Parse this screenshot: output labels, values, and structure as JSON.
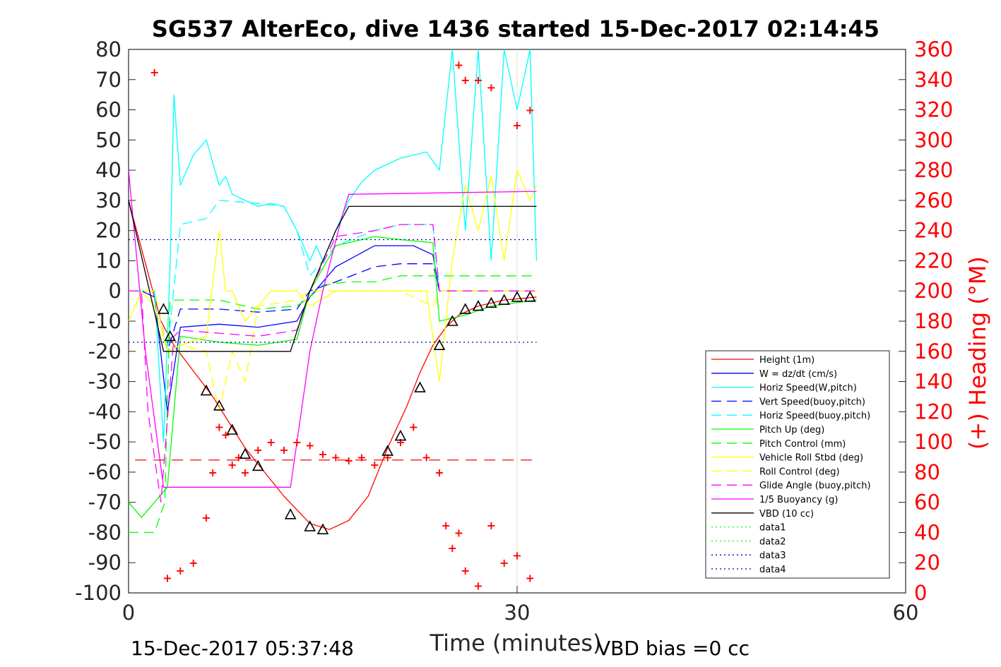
{
  "chart_data": {
    "type": "line",
    "title": "SG537 AlterEco, dive 1436 started 15-Dec-2017 02:14:45",
    "xlabel": "Time (minutes)",
    "ylabel_right": "(+) Heading (°M)",
    "xlim": [
      0,
      60
    ],
    "ylim": [
      -100,
      80
    ],
    "ylim_right": [
      0,
      360
    ],
    "xticks": [
      "0",
      "30",
      "60"
    ],
    "yticks": [
      "80",
      "70",
      "60",
      "50",
      "40",
      "30",
      "20",
      "10",
      "0",
      "-10",
      "-20",
      "-30",
      "-40",
      "-50",
      "-60",
      "-70",
      "-80",
      "-90",
      "-100"
    ],
    "yticks_right": [
      "360",
      "340",
      "320",
      "300",
      "280",
      "260",
      "240",
      "220",
      "200",
      "180",
      "160",
      "140",
      "120",
      "100",
      "80",
      "60",
      "40",
      "20",
      "0"
    ],
    "grid": "x",
    "legend_position": "right-inside",
    "footer_left": "15-Dec-2017 05:37:48",
    "footer_right": "VBD bias =0 cc",
    "colors": {
      "red": "#ff0000",
      "blue": "#0000ff",
      "cyan": "#00ffff",
      "green": "#00ff00",
      "yellow": "#ffff00",
      "magenta": "#ff00ff",
      "black": "#000000",
      "darkblue": "#0000aa"
    },
    "series": [
      {
        "name": "Height (1m)",
        "color": "#ff0000",
        "style": "solid",
        "x": [
          0,
          2.5,
          3.5,
          6.5,
          9,
          12,
          14,
          15.5,
          17,
          18.5,
          20,
          21.5,
          22.5,
          23.5,
          24.5,
          25.5,
          27,
          29,
          31.5
        ],
        "y": [
          30,
          -10,
          -18,
          -35,
          -52,
          -68,
          -77,
          -79,
          -76,
          -68,
          -52,
          -38,
          -27,
          -18,
          -12,
          -8,
          -5,
          -3,
          -2
        ]
      },
      {
        "name": "W = dz/dt (cm/s)",
        "color": "#0000ff",
        "style": "solid",
        "x": [
          0,
          1,
          2,
          3,
          4,
          7,
          10,
          13,
          14,
          16,
          19,
          22,
          23.5,
          24,
          26,
          28,
          31.5
        ],
        "y": [
          0,
          0,
          -2,
          -40,
          -12,
          -11,
          -12,
          -10,
          -2,
          8,
          15,
          15,
          12,
          0,
          0,
          0,
          0
        ]
      },
      {
        "name": "Horiz Speed(W,pitch)",
        "color": "#00ffff",
        "style": "solid",
        "x": [
          0,
          2,
          2.7,
          3.2,
          3.5,
          4,
          5,
          6,
          7,
          7.5,
          8,
          9,
          10,
          11,
          12,
          13,
          14,
          14.5,
          15,
          16,
          17,
          18,
          19,
          20,
          21,
          22,
          23,
          24,
          25,
          26,
          27,
          28,
          29,
          30,
          31,
          31.5
        ],
        "y": [
          0,
          0,
          -50,
          8,
          65,
          35,
          45,
          50,
          35,
          38,
          32,
          30,
          28,
          29,
          28,
          20,
          10,
          15,
          10,
          20,
          30,
          36,
          40,
          42,
          44,
          45,
          46,
          40,
          80,
          20,
          80,
          10,
          80,
          60,
          80,
          10
        ]
      },
      {
        "name": "Vert Speed(buoy,pitch)",
        "color": "#0000ff",
        "style": "dash",
        "x": [
          0,
          2,
          3,
          4,
          7,
          10,
          13,
          14,
          16,
          19,
          21,
          23.5,
          24,
          31.5
        ],
        "y": [
          0,
          0,
          -20,
          -6,
          -6,
          -7,
          -6,
          0,
          3,
          8,
          9,
          9,
          0,
          0
        ]
      },
      {
        "name": "Horiz Speed(buoy,pitch)",
        "color": "#00ffff",
        "style": "dash",
        "x": [
          0,
          2,
          3,
          4,
          6,
          7,
          10,
          12,
          13,
          14,
          16,
          19,
          21,
          23.5,
          24,
          31.5
        ],
        "y": [
          0,
          0,
          -20,
          22,
          24,
          30,
          29,
          28,
          20,
          5,
          15,
          20,
          22,
          22,
          0,
          0
        ]
      },
      {
        "name": "Pitch Up (deg)",
        "color": "#00ff00",
        "style": "solid",
        "x": [
          0,
          1,
          2,
          3,
          4,
          7,
          10,
          13,
          14,
          16,
          19,
          21,
          23.5,
          24,
          26,
          28,
          31.5
        ],
        "y": [
          -70,
          -75,
          -70,
          -65,
          -15,
          -17,
          -18,
          -16,
          0,
          15,
          18,
          17,
          16,
          -10,
          -8,
          -5,
          -3
        ]
      },
      {
        "name": "Pitch Control (mm)",
        "color": "#00ff00",
        "style": "dash",
        "x": [
          0,
          2,
          2.8,
          3.2,
          7,
          10,
          13,
          14,
          15,
          17,
          19,
          21,
          23.5,
          24,
          31.5
        ],
        "y": [
          -80,
          -80,
          -70,
          -3,
          -3,
          -6,
          -5,
          -2,
          2,
          3,
          3,
          5,
          5,
          5,
          5
        ]
      },
      {
        "name": "Vehicle Roll Stbd (deg)",
        "color": "#ffff00",
        "style": "solid",
        "x": [
          0,
          1,
          2,
          3,
          4,
          6,
          7,
          7.5,
          8,
          9,
          11,
          13,
          14,
          16,
          19,
          22,
          23,
          24,
          25,
          26,
          27,
          28,
          29,
          30,
          31,
          31.5
        ],
        "y": [
          -10,
          0,
          -5,
          -20,
          -18,
          -15,
          20,
          0,
          0,
          -10,
          0,
          0,
          -5,
          0,
          0,
          0,
          0,
          -30,
          10,
          35,
          20,
          38,
          10,
          40,
          30,
          35
        ]
      },
      {
        "name": "Roll Control (deg)",
        "color": "#ffff00",
        "style": "dash",
        "x": [
          0,
          2,
          3,
          4,
          6,
          7,
          8,
          9,
          10,
          13,
          14,
          17,
          21,
          23.5,
          24,
          31.5
        ],
        "y": [
          0,
          0,
          -20,
          -18,
          -20,
          -40,
          -20,
          -30,
          -5,
          -3,
          0,
          0,
          0,
          -5,
          0,
          0
        ]
      },
      {
        "name": "Glide Angle (buoy,pitch)",
        "color": "#ff00ff",
        "style": "dash",
        "x": [
          0,
          1,
          1.5,
          2.5,
          3.5,
          4,
          7,
          10,
          13,
          14,
          16,
          19,
          21,
          23.5,
          24,
          31.5
        ],
        "y": [
          0,
          0,
          -40,
          -70,
          -15,
          -13,
          -14,
          -15,
          -13,
          0,
          18,
          20,
          22,
          22,
          0,
          0
        ]
      },
      {
        "name": "1/5 Buoyancy (g)",
        "color": "#ff00ff",
        "style": "solid",
        "x": [
          0,
          1.3,
          2.7,
          3,
          10,
          12.5,
          14,
          15,
          16.5,
          17,
          31.5
        ],
        "y": [
          40,
          -20,
          -65,
          -65,
          -65,
          -65,
          -20,
          0,
          25,
          32,
          33
        ]
      },
      {
        "name": "VBD (10 cc)",
        "color": "#000000",
        "style": "solid",
        "x": [
          0,
          2.7,
          3,
          12.5,
          14,
          16,
          17,
          31.5
        ],
        "y": [
          30,
          -20,
          -20,
          -20,
          0,
          20,
          28,
          28
        ]
      },
      {
        "name": "data1",
        "color": "#00ff00",
        "style": "dot",
        "x": [],
        "y": []
      },
      {
        "name": "data2",
        "color": "#00ff00",
        "style": "dot",
        "x": [],
        "y": []
      },
      {
        "name": "data3",
        "color": "#0000aa",
        "style": "dot",
        "x": [
          0,
          31.5
        ],
        "y": [
          -17,
          -17
        ]
      },
      {
        "name": "data4",
        "color": "#0000aa",
        "style": "dot",
        "x": [
          0,
          31.5
        ],
        "y": [
          17,
          17
        ]
      }
    ],
    "heading": {
      "axis": "right",
      "color": "#ff0000",
      "marker": "+",
      "mean": 88,
      "x": [
        2,
        3,
        4,
        5,
        6,
        6.5,
        7,
        7.5,
        8,
        8.5,
        9,
        10,
        11,
        12,
        13,
        14,
        15,
        16,
        17,
        18,
        19,
        20,
        21,
        22,
        23,
        24,
        24.5,
        25,
        25.5,
        26,
        27,
        28,
        29,
        30,
        31,
        25.5,
        26,
        27,
        28,
        30,
        31
      ],
      "y": [
        345,
        10,
        15,
        20,
        50,
        80,
        110,
        105,
        85,
        90,
        80,
        95,
        100,
        95,
        100,
        98,
        92,
        90,
        88,
        90,
        85,
        90,
        100,
        110,
        90,
        80,
        45,
        30,
        40,
        15,
        5,
        45,
        20,
        25,
        10,
        350,
        340,
        340,
        335,
        310,
        320
      ]
    },
    "dive_markers": {
      "color": "#000000",
      "x": [
        2.7,
        3.2,
        6,
        7,
        8,
        9,
        10,
        12.5,
        14,
        15,
        20,
        21,
        22.5,
        24,
        25,
        26,
        27,
        28,
        29,
        30,
        31
      ],
      "y": [
        -6,
        -15,
        -33,
        -38,
        -46,
        -54,
        -58,
        -74,
        -78,
        -79,
        -53,
        -48,
        -32,
        -18,
        -10,
        -6,
        -5,
        -4,
        -3,
        -2,
        -2
      ]
    }
  }
}
